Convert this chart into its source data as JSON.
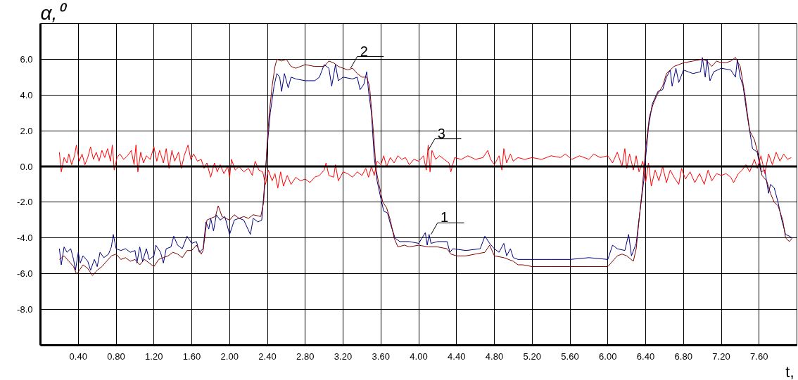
{
  "chart_data": {
    "type": "line",
    "xlabel": "t,",
    "ylabel": "α,⁰",
    "xlim": [
      0,
      8.0
    ],
    "ylim": [
      -10,
      8
    ],
    "xticks": [
      {
        "value": 0.4,
        "label": "0.40"
      },
      {
        "value": 0.8,
        "label": "0.80"
      },
      {
        "value": 1.2,
        "label": "1.20"
      },
      {
        "value": 1.6,
        "label": "1.60"
      },
      {
        "value": 2.0,
        "label": "2.00"
      },
      {
        "value": 2.4,
        "label": "2.40"
      },
      {
        "value": 2.8,
        "label": "2.80"
      },
      {
        "value": 3.2,
        "label": "3.20"
      },
      {
        "value": 3.6,
        "label": "3.60"
      },
      {
        "value": 4.0,
        "label": "4.00"
      },
      {
        "value": 4.4,
        "label": "4.40"
      },
      {
        "value": 4.8,
        "label": "4.80"
      },
      {
        "value": 5.2,
        "label": "5.20"
      },
      {
        "value": 5.6,
        "label": "5.60"
      },
      {
        "value": 6.0,
        "label": "6.00"
      },
      {
        "value": 6.4,
        "label": "6.40"
      },
      {
        "value": 6.8,
        "label": "6.80"
      },
      {
        "value": 7.2,
        "label": "7.20"
      },
      {
        "value": 7.6,
        "label": "7.60"
      }
    ],
    "yticks": [
      {
        "value": -10,
        "label": null
      },
      {
        "value": -8,
        "label": "-8.0"
      },
      {
        "value": -6,
        "label": "-6.0"
      },
      {
        "value": -4,
        "label": "-4.0"
      },
      {
        "value": -2,
        "label": "-2.0"
      },
      {
        "value": 0,
        "label": "0.0"
      },
      {
        "value": 2,
        "label": "2.0"
      },
      {
        "value": 4,
        "label": "4.0"
      },
      {
        "value": 6,
        "label": "6.0"
      },
      {
        "value": 8,
        "label": null
      }
    ],
    "grid": true,
    "ref_lines": [
      {
        "axis": "y",
        "value": 0,
        "color": "#000000"
      }
    ],
    "annotations": [
      {
        "text": "2",
        "x": 3.28,
        "y": 5.5
      },
      {
        "text": "3",
        "x": 4.1,
        "y": 0.9
      },
      {
        "text": "1",
        "x": 4.13,
        "y": -3.8
      }
    ],
    "series": [
      {
        "color": "#ff0000",
        "x": [
          0.2,
          0.22,
          0.25,
          0.28,
          0.3,
          0.33,
          0.36,
          0.38,
          0.41,
          0.44,
          0.47,
          0.5,
          0.53,
          0.56,
          0.59,
          0.62,
          0.65,
          0.68,
          0.71,
          0.74,
          0.76,
          0.78,
          0.81,
          0.84,
          0.88,
          0.92,
          0.96,
          0.99,
          1.01,
          1.03,
          1.06,
          1.09,
          1.12,
          1.16,
          1.2,
          1.23,
          1.26,
          1.3,
          1.33,
          1.36,
          1.39,
          1.42,
          1.46,
          1.49,
          1.52,
          1.56,
          1.59,
          1.62,
          1.66,
          1.7,
          1.73,
          1.76,
          1.8,
          1.84,
          1.87,
          1.9,
          1.94,
          1.98,
          2.0,
          2.02,
          2.06,
          2.1,
          2.15,
          2.2,
          2.24,
          2.27,
          2.31,
          2.35,
          2.38,
          2.41,
          2.45,
          2.48,
          2.51,
          2.54,
          2.57,
          2.61,
          2.65,
          2.7,
          2.75,
          2.8,
          2.85,
          2.9,
          2.95,
          3.0,
          3.02,
          3.05,
          3.1,
          3.12,
          3.15,
          3.2,
          3.25,
          3.3,
          3.35,
          3.4,
          3.44,
          3.47,
          3.5,
          3.53,
          3.56,
          3.6,
          3.63,
          3.66,
          3.7,
          3.74,
          3.78,
          3.82,
          3.86,
          3.9,
          3.95,
          4.0,
          4.05,
          4.08,
          4.1,
          4.12,
          4.14,
          4.18,
          4.22,
          4.27,
          4.32,
          4.34,
          4.38,
          4.45,
          4.52,
          4.6,
          4.68,
          4.73,
          4.76,
          4.8,
          4.85,
          4.88,
          4.9,
          4.93,
          4.97,
          5.0,
          5.05,
          5.12,
          5.2,
          5.3,
          5.4,
          5.5,
          5.55,
          5.62,
          5.7,
          5.8,
          5.85,
          5.92,
          6.0,
          6.05,
          6.1,
          6.15,
          6.18,
          6.2,
          6.23,
          6.27,
          6.3,
          6.33,
          6.37,
          6.4,
          6.43,
          6.46,
          6.5,
          6.54,
          6.58,
          6.62,
          6.66,
          6.7,
          6.75,
          6.78,
          6.82,
          6.87,
          6.92,
          6.97,
          7.02,
          7.06,
          7.1,
          7.15,
          7.2,
          7.25,
          7.3,
          7.33,
          7.38,
          7.42,
          7.46,
          7.5,
          7.55,
          7.58,
          7.62,
          7.66,
          7.7,
          7.74,
          7.78,
          7.82,
          7.86,
          7.9,
          7.94
        ],
        "values": [
          0.8,
          -0.3,
          0.5,
          0.2,
          0.7,
          0.1,
          0.6,
          1.2,
          0.3,
          0.7,
          0.1,
          0.5,
          1.1,
          0.4,
          0.8,
          0.3,
          0.9,
          0.5,
          1.0,
          0.3,
          1.2,
          -0.2,
          0.5,
          0.7,
          0.4,
          0.6,
          0.9,
          0.1,
          1.2,
          -0.3,
          0.8,
          0.2,
          0.6,
          0.4,
          1.1,
          0.3,
          0.9,
          0.2,
          1.0,
          -0.1,
          0.9,
          0.3,
          0.8,
          -0.1,
          0.6,
          1.2,
          0.4,
          0.7,
          0.3,
          0.4,
          -0.1,
          0.2,
          -0.6,
          0.2,
          -0.3,
          0.1,
          -0.4,
          0.0,
          -0.6,
          0.4,
          -0.2,
          0.0,
          -0.3,
          -0.1,
          -0.5,
          0.3,
          -0.2,
          -0.3,
          -1.0,
          -0.2,
          -0.8,
          -0.4,
          -1.2,
          -0.3,
          -1.1,
          -0.5,
          -1.0,
          -0.6,
          -0.8,
          -0.7,
          -0.9,
          -0.6,
          -0.5,
          -0.2,
          0.2,
          -0.5,
          -0.6,
          0.1,
          -0.8,
          -0.3,
          -0.4,
          -0.6,
          -0.3,
          -0.5,
          -0.1,
          -0.6,
          0.0,
          -0.5,
          0.3,
          0.1,
          0.6,
          0.0,
          0.5,
          0.2,
          0.6,
          0.4,
          0.5,
          0.1,
          0.4,
          0.3,
          0.6,
          -0.2,
          1.2,
          -0.3,
          0.9,
          0.4,
          0.6,
          0.4,
          0.2,
          -0.3,
          0.5,
          0.4,
          0.6,
          0.4,
          0.5,
          0.9,
          0.4,
          0.1,
          0.6,
          -0.2,
          1.0,
          0.2,
          0.7,
          0.3,
          0.5,
          0.4,
          0.5,
          0.4,
          0.6,
          0.5,
          0.7,
          0.4,
          0.6,
          0.4,
          0.7,
          0.5,
          0.6,
          0.2,
          0.8,
          0.0,
          1.0,
          -0.1,
          0.7,
          -0.2,
          0.6,
          -0.3,
          0.3,
          -0.9,
          0.2,
          -1.1,
          -0.2,
          -0.8,
          0.0,
          -0.9,
          -0.2,
          -0.6,
          -1.0,
          -0.1,
          -0.7,
          -0.3,
          -0.9,
          -0.4,
          -1.0,
          -0.2,
          -0.8,
          -0.4,
          -0.5,
          -0.4,
          -0.6,
          -0.9,
          -0.4,
          -0.2,
          0.1,
          -0.3,
          0.4,
          -0.1,
          0.6,
          -0.4,
          0.7,
          0.1,
          0.8,
          0.3,
          0.7,
          0.4,
          0.5
        ]
      },
      {
        "color": "#800000",
        "x": [
          0.2,
          0.25,
          0.3,
          0.35,
          0.38,
          0.4,
          0.45,
          0.5,
          0.55,
          0.6,
          0.65,
          0.7,
          0.75,
          0.8,
          0.85,
          0.9,
          0.95,
          1.0,
          1.05,
          1.1,
          1.15,
          1.2,
          1.25,
          1.3,
          1.35,
          1.4,
          1.45,
          1.5,
          1.55,
          1.6,
          1.65,
          1.7,
          1.72,
          1.76,
          1.8,
          1.85,
          1.88,
          1.92,
          2.0,
          2.05,
          2.1,
          2.15,
          2.2,
          2.25,
          2.33,
          2.36,
          2.38,
          2.4,
          2.42,
          2.45,
          2.48,
          2.5,
          2.55,
          2.6,
          2.65,
          2.7,
          2.8,
          2.9,
          3.0,
          3.05,
          3.1,
          3.15,
          3.2,
          3.25,
          3.3,
          3.35,
          3.4,
          3.45,
          3.48,
          3.52,
          3.55,
          3.58,
          3.62,
          3.66,
          3.7,
          3.74,
          3.78,
          3.85,
          3.9,
          4.0,
          4.1,
          4.2,
          4.3,
          4.34,
          4.4,
          4.5,
          4.6,
          4.7,
          4.75,
          4.8,
          4.9,
          5.0,
          5.05,
          5.1,
          5.2,
          5.4,
          5.6,
          5.8,
          6.0,
          6.05,
          6.1,
          6.15,
          6.2,
          6.27,
          6.3,
          6.33,
          6.36,
          6.4,
          6.44,
          6.48,
          6.52,
          6.58,
          6.62,
          6.7,
          6.8,
          6.9,
          7.0,
          7.05,
          7.1,
          7.15,
          7.2,
          7.25,
          7.3,
          7.35,
          7.4,
          7.45,
          7.5,
          7.55,
          7.6,
          7.63,
          7.68,
          7.72,
          7.76,
          7.8,
          7.85,
          7.88,
          7.92,
          7.95
        ],
        "values": [
          -5.2,
          -5.0,
          -5.3,
          -5.6,
          -6.0,
          -5.9,
          -5.5,
          -5.7,
          -6.1,
          -5.8,
          -5.6,
          -5.3,
          -5.0,
          -4.9,
          -5.2,
          -5.1,
          -5.3,
          -5.2,
          -5.5,
          -5.2,
          -5.4,
          -5.6,
          -5.2,
          -5.1,
          -5.0,
          -4.8,
          -4.9,
          -5.1,
          -4.7,
          -4.7,
          -4.4,
          -4.9,
          -4.7,
          -3.0,
          -2.9,
          -2.8,
          -2.2,
          -2.8,
          -3.0,
          -2.7,
          -2.9,
          -2.8,
          -2.9,
          -2.7,
          -2.8,
          -2.0,
          -0.3,
          1.5,
          3.0,
          4.5,
          5.6,
          6.0,
          5.9,
          6.0,
          5.6,
          5.5,
          5.7,
          5.6,
          5.6,
          5.9,
          5.8,
          5.6,
          5.5,
          5.4,
          5.5,
          5.2,
          5.0,
          5.0,
          4.5,
          2.0,
          -0.2,
          -1.0,
          -2.0,
          -2.3,
          -3.0,
          -4.0,
          -4.5,
          -4.4,
          -4.5,
          -4.4,
          -4.5,
          -4.5,
          -4.6,
          -4.9,
          -5.0,
          -5.0,
          -4.9,
          -4.8,
          -4.4,
          -5.0,
          -5.1,
          -5.3,
          -5.5,
          -5.5,
          -5.6,
          -5.6,
          -5.6,
          -5.6,
          -5.6,
          -5.3,
          -5.0,
          -4.9,
          -5.0,
          -5.3,
          -4.6,
          -3.0,
          -1.5,
          1.0,
          2.8,
          3.5,
          4.0,
          4.5,
          5.2,
          5.6,
          5.8,
          5.9,
          6.0,
          5.9,
          5.6,
          5.9,
          5.8,
          5.8,
          5.9,
          6.1,
          5.6,
          4.0,
          2.0,
          1.5,
          0.5,
          -0.5,
          -0.8,
          -1.5,
          -2.0,
          -2.2,
          -3.0,
          -4.0,
          -4.2,
          -4.0
        ]
      },
      {
        "color": "#000080",
        "x": [
          0.2,
          0.22,
          0.25,
          0.28,
          0.32,
          0.35,
          0.37,
          0.4,
          0.42,
          0.45,
          0.5,
          0.53,
          0.57,
          0.6,
          0.63,
          0.67,
          0.72,
          0.75,
          0.77,
          0.8,
          0.85,
          0.9,
          0.95,
          1.0,
          1.02,
          1.05,
          1.08,
          1.12,
          1.15,
          1.2,
          1.22,
          1.27,
          1.3,
          1.33,
          1.38,
          1.41,
          1.45,
          1.5,
          1.55,
          1.6,
          1.65,
          1.68,
          1.72,
          1.75,
          1.78,
          1.8,
          1.83,
          1.86,
          1.9,
          1.95,
          2.0,
          2.05,
          2.1,
          2.15,
          2.22,
          2.25,
          2.3,
          2.34,
          2.37,
          2.4,
          2.43,
          2.47,
          2.5,
          2.53,
          2.55,
          2.58,
          2.62,
          2.65,
          2.7,
          2.8,
          2.9,
          2.95,
          3.0,
          3.05,
          3.08,
          3.12,
          3.15,
          3.2,
          3.3,
          3.35,
          3.38,
          3.42,
          3.45,
          3.47,
          3.5,
          3.53,
          3.56,
          3.6,
          3.63,
          3.67,
          3.7,
          3.75,
          3.8,
          3.9,
          4.0,
          4.07,
          4.09,
          4.11,
          4.13,
          4.2,
          4.3,
          4.33,
          4.36,
          4.5,
          4.65,
          4.7,
          4.75,
          4.8,
          4.85,
          4.9,
          4.93,
          4.97,
          5.0,
          5.05,
          5.2,
          5.4,
          5.6,
          5.8,
          6.0,
          6.05,
          6.1,
          6.18,
          6.22,
          6.25,
          6.3,
          6.34,
          6.38,
          6.4,
          6.43,
          6.47,
          6.53,
          6.58,
          6.62,
          6.66,
          6.68,
          6.72,
          6.75,
          6.8,
          6.9,
          6.98,
          7.0,
          7.03,
          7.05,
          7.08,
          7.12,
          7.2,
          7.3,
          7.35,
          7.37,
          7.4,
          7.43,
          7.47,
          7.5,
          7.53,
          7.58,
          7.62,
          7.66,
          7.7,
          7.72,
          7.76,
          7.8,
          7.84,
          7.88,
          7.92,
          7.95
        ],
        "values": [
          -4.6,
          -5.5,
          -4.5,
          -4.8,
          -4.6,
          -5.2,
          -5.8,
          -4.8,
          -5.4,
          -5.0,
          -5.3,
          -5.8,
          -5.2,
          -5.6,
          -4.8,
          -5.1,
          -4.9,
          -4.5,
          -3.8,
          -4.6,
          -4.7,
          -4.6,
          -4.8,
          -4.7,
          -5.4,
          -4.5,
          -5.3,
          -4.6,
          -5.2,
          -5.0,
          -4.4,
          -4.8,
          -5.4,
          -4.6,
          -4.5,
          -3.9,
          -4.4,
          -4.6,
          -3.9,
          -4.3,
          -4.2,
          -4.8,
          -4.6,
          -3.1,
          -3.5,
          -2.9,
          -3.6,
          -2.7,
          -3.0,
          -2.8,
          -3.8,
          -3.0,
          -2.9,
          -3.0,
          -3.8,
          -2.9,
          -3.1,
          -3.0,
          -1.0,
          1.2,
          3.0,
          4.5,
          5.2,
          5.0,
          4.2,
          5.2,
          4.4,
          5.0,
          4.9,
          4.8,
          4.8,
          5.0,
          5.7,
          5.5,
          4.5,
          5.7,
          4.8,
          5.0,
          4.9,
          5.0,
          4.3,
          4.6,
          5.3,
          4.2,
          3.0,
          0.5,
          -0.8,
          -1.8,
          -2.5,
          -2.6,
          -3.2,
          -4.0,
          -4.2,
          -4.2,
          -4.3,
          -3.7,
          -4.4,
          -3.8,
          -4.3,
          -4.2,
          -4.2,
          -4.8,
          -4.6,
          -4.7,
          -4.6,
          -3.9,
          -4.3,
          -4.6,
          -4.8,
          -4.3,
          -5.0,
          -4.6,
          -5.1,
          -5.2,
          -5.2,
          -5.2,
          -5.2,
          -5.1,
          -5.2,
          -4.4,
          -4.6,
          -4.7,
          -3.8,
          -5.0,
          -4.3,
          -2.5,
          -0.8,
          0.5,
          2.2,
          3.5,
          4.2,
          4.3,
          5.0,
          5.4,
          4.5,
          5.5,
          4.7,
          5.4,
          5.2,
          5.3,
          6.1,
          5.0,
          6.0,
          4.8,
          5.3,
          5.5,
          5.4,
          5.0,
          6.0,
          5.0,
          4.5,
          3.0,
          2.0,
          1.0,
          0.8,
          -0.3,
          -0.2,
          -1.5,
          -1.0,
          -1.2,
          -2.0,
          -3.0,
          -3.8,
          -3.9,
          -4.0
        ]
      }
    ]
  }
}
